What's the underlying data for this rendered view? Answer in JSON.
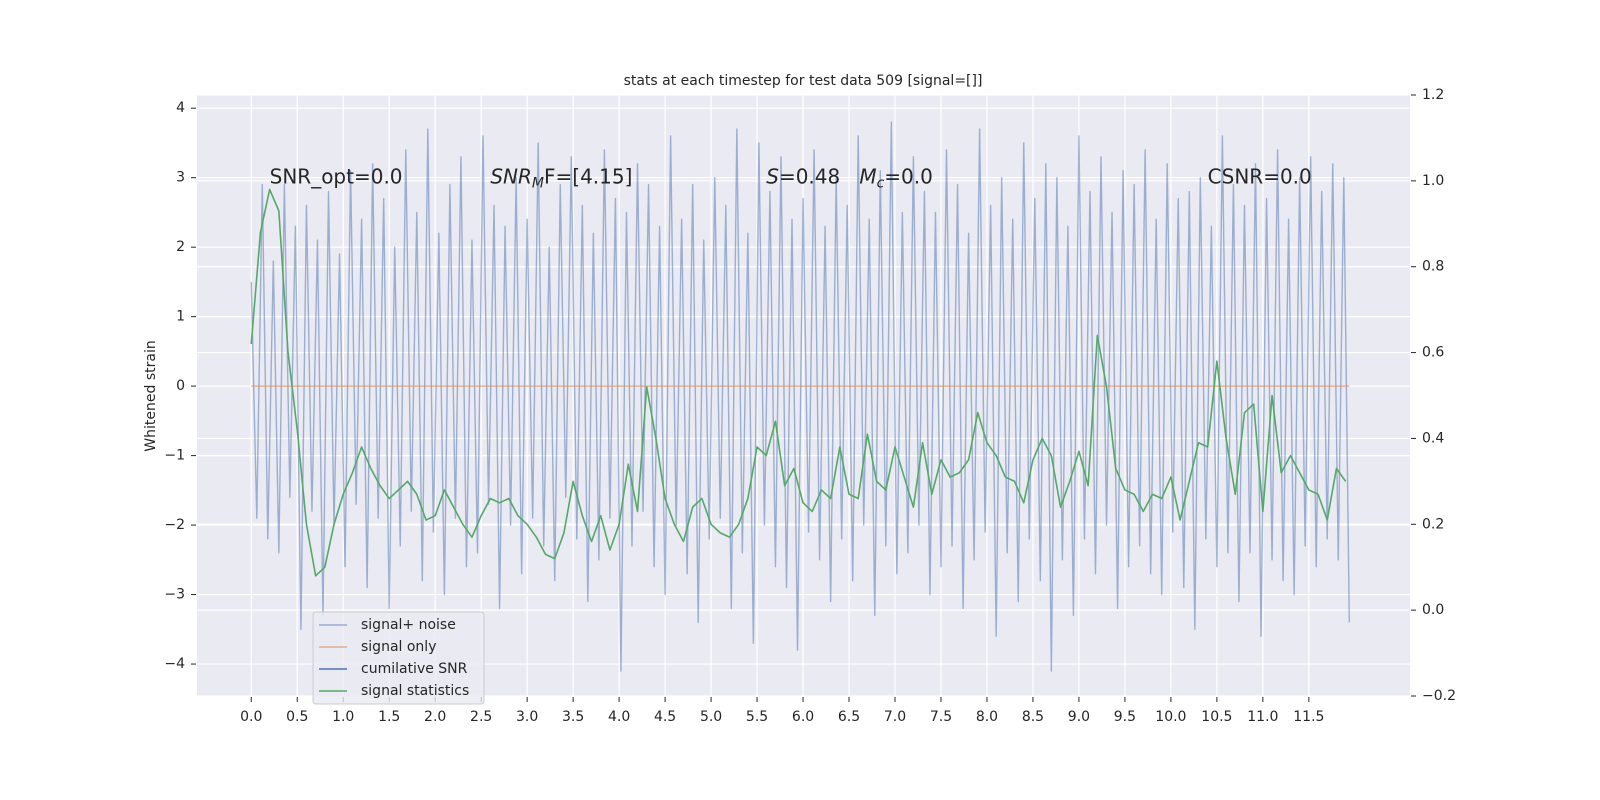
{
  "chart_data": {
    "type": "line",
    "title": "stats at each timestep for test data 509 [signal=[]]",
    "ylabel": "Whitened strain",
    "xlim": [
      -0.59,
      12.6
    ],
    "ylim": [
      -4.46,
      4.19
    ],
    "y2lim": [
      -0.2,
      1.2
    ],
    "xticks": [
      {
        "value": 0,
        "label": "0.0"
      },
      0.5,
      {
        "value": 1,
        "label": "1.0"
      },
      1.5,
      {
        "value": 2,
        "label": "2.0"
      },
      2.5,
      {
        "value": 3,
        "label": "3.0"
      },
      3.5,
      {
        "value": 4,
        "label": "4.0"
      },
      4.5,
      {
        "value": 5,
        "label": "5.0"
      },
      5.5,
      {
        "value": 6,
        "label": "6.0"
      },
      6.5,
      {
        "value": 7,
        "label": "7.0"
      },
      7.5,
      {
        "value": 8,
        "label": "8.0"
      },
      8.5,
      {
        "value": 9,
        "label": "9.0"
      },
      9.5,
      {
        "value": 10,
        "label": "10.0"
      },
      10.5,
      {
        "value": 11,
        "label": "11.0"
      },
      11.5
    ],
    "yticks": [
      {
        "value": -4,
        "label": "−4"
      },
      {
        "value": -3,
        "label": "−3"
      },
      {
        "value": -2,
        "label": "−2"
      },
      {
        "value": -1,
        "label": "−1"
      },
      0,
      1,
      2,
      3,
      4
    ],
    "y2ticks": [
      {
        "value": -0.2,
        "label": "−0.2"
      },
      {
        "value": 0,
        "label": "0.0"
      },
      0.2,
      0.4,
      0.6,
      0.8,
      {
        "value": 1,
        "label": "1.0"
      },
      1.2
    ],
    "grid": true,
    "legend": "lower left",
    "annotations": [
      {
        "x": 0.2,
        "y": 3,
        "parts": [
          {
            "text": "SNR_opt=0.0"
          }
        ]
      },
      {
        "x": 2.6,
        "y": 3,
        "parts": [
          {
            "text": "SNR",
            "style": "italic"
          },
          {
            "text": "M",
            "style": "italic-sub"
          },
          {
            "text": "F=[4.15]"
          }
        ]
      },
      {
        "x": 5.6,
        "y": 3,
        "parts": [
          {
            "text": "S",
            "style": "italic"
          },
          {
            "text": "=0.48   "
          },
          {
            "text": "M",
            "style": "italic"
          },
          {
            "text": "c",
            "style": "italic-sub"
          },
          {
            "text": "=0.0"
          }
        ]
      },
      {
        "x": 10.4,
        "y": 3,
        "parts": [
          {
            "text": "CSNR=0.0"
          }
        ]
      }
    ],
    "series": [
      {
        "name": "signal+ noise",
        "color": "#4c72b0",
        "opacity": 0.5,
        "x": [
          0,
          0.06,
          0.12,
          0.18,
          0.24,
          0.3,
          0.36,
          0.42,
          0.48,
          0.54,
          0.6,
          0.66,
          0.72,
          0.78,
          0.84,
          0.9,
          0.96,
          1.02,
          1.08,
          1.14,
          1.2,
          1.26,
          1.32,
          1.38,
          1.44,
          1.5,
          1.56,
          1.62,
          1.68,
          1.74,
          1.8,
          1.86,
          1.92,
          1.98,
          2.04,
          2.1,
          2.16,
          2.22,
          2.28,
          2.34,
          2.4,
          2.46,
          2.52,
          2.58,
          2.64,
          2.7,
          2.76,
          2.82,
          2.88,
          2.94,
          3,
          3.06,
          3.12,
          3.18,
          3.24,
          3.3,
          3.36,
          3.42,
          3.48,
          3.54,
          3.6,
          3.66,
          3.72,
          3.78,
          3.84,
          3.9,
          3.96,
          4.02,
          4.08,
          4.14,
          4.2,
          4.26,
          4.32,
          4.38,
          4.44,
          4.5,
          4.56,
          4.62,
          4.68,
          4.74,
          4.8,
          4.86,
          4.92,
          4.98,
          5.04,
          5.1,
          5.16,
          5.22,
          5.28,
          5.34,
          5.4,
          5.46,
          5.52,
          5.58,
          5.64,
          5.7,
          5.76,
          5.82,
          5.88,
          5.94,
          6,
          6.06,
          6.12,
          6.18,
          6.24,
          6.3,
          6.36,
          6.42,
          6.48,
          6.54,
          6.6,
          6.66,
          6.72,
          6.78,
          6.84,
          6.9,
          6.96,
          7.02,
          7.08,
          7.14,
          7.2,
          7.26,
          7.32,
          7.38,
          7.44,
          7.5,
          7.56,
          7.62,
          7.68,
          7.74,
          7.8,
          7.86,
          7.92,
          7.98,
          8.04,
          8.1,
          8.16,
          8.22,
          8.28,
          8.34,
          8.4,
          8.46,
          8.52,
          8.58,
          8.64,
          8.7,
          8.76,
          8.82,
          8.88,
          8.94,
          9,
          9.06,
          9.12,
          9.18,
          9.24,
          9.3,
          9.36,
          9.42,
          9.48,
          9.54,
          9.6,
          9.66,
          9.72,
          9.78,
          9.84,
          9.9,
          9.96,
          10.02,
          10.08,
          10.14,
          10.2,
          10.26,
          10.32,
          10.38,
          10.44,
          10.5,
          10.56,
          10.62,
          10.68,
          10.74,
          10.8,
          10.86,
          10.92,
          10.98,
          11.04,
          11.1,
          11.16,
          11.22,
          11.28,
          11.34,
          11.4,
          11.46,
          11.52,
          11.58,
          11.64,
          11.7,
          11.76,
          11.82,
          11.88,
          11.94
        ],
        "values": [
          1.5,
          -1.9,
          2.9,
          -2.2,
          1.8,
          -2.4,
          2.9,
          -1.6,
          2.3,
          -3.5,
          2.6,
          -1.8,
          2.1,
          -3.3,
          2.8,
          -2.0,
          1.9,
          -2.6,
          3.1,
          -1.7,
          2.4,
          -2.9,
          3.2,
          -1.9,
          2.7,
          -3.2,
          2.0,
          -2.3,
          3.4,
          -1.8,
          2.5,
          -2.8,
          3.7,
          -2.1,
          2.2,
          -3.0,
          2.9,
          -1.9,
          3.3,
          -2.6,
          2.1,
          -2.4,
          3.6,
          -1.7,
          2.6,
          -3.2,
          2.3,
          -2.0,
          3.0,
          -2.7,
          2.4,
          -1.9,
          3.5,
          -2.3,
          2.0,
          -2.8,
          2.9,
          -1.6,
          3.3,
          -2.2,
          2.6,
          -3.1,
          2.2,
          -2.5,
          3.4,
          -1.9,
          2.7,
          -4.1,
          2.5,
          -2.3,
          3.2,
          -1.8,
          2.9,
          -2.6,
          2.3,
          -3.0,
          3.6,
          -2.0,
          2.4,
          -2.7,
          2.9,
          -3.4,
          2.1,
          -2.2,
          3.0,
          -1.9,
          2.6,
          -3.2,
          3.7,
          -2.4,
          2.2,
          -3.7,
          3.5,
          -2.0,
          2.8,
          -2.6,
          3.3,
          -2.9,
          2.4,
          -3.8,
          2.7,
          -2.1,
          3.4,
          -2.5,
          2.3,
          -3.1,
          3.0,
          -2.2,
          2.6,
          -2.8,
          3.6,
          -2.0,
          2.4,
          -3.3,
          3.1,
          -2.3,
          3.8,
          -2.7,
          2.5,
          -2.4,
          3.3,
          -2.0,
          2.8,
          -3.0,
          2.5,
          -2.6,
          3.4,
          -2.3,
          2.9,
          -3.2,
          2.2,
          -2.5,
          3.7,
          -2.1,
          2.6,
          -3.6,
          3.0,
          -2.4,
          2.4,
          -3.1,
          3.5,
          -2.2,
          2.7,
          -2.8,
          3.2,
          -4.1,
          3.0,
          -2.5,
          2.3,
          -3.3,
          3.6,
          -2.2,
          2.8,
          -2.7,
          3.3,
          -2.0,
          2.5,
          -3.2,
          3.1,
          -2.6,
          2.9,
          -2.3,
          3.4,
          -2.7,
          2.4,
          -3.0,
          3.2,
          -2.1,
          2.7,
          -2.9,
          2.8,
          -3.5,
          3.0,
          -2.2,
          2.3,
          -2.6,
          3.6,
          -2.4,
          2.9,
          -3.1,
          2.6,
          -2.4,
          3.2,
          -3.6,
          2.7,
          -2.5,
          3.4,
          -2.8,
          2.4,
          -3.0,
          3.0,
          -2.3,
          3.3,
          -2.6,
          2.8,
          -2.2,
          3.2,
          -2.5,
          3.0,
          -3.4
        ]
      },
      {
        "name": "signal only",
        "color": "#dd8452",
        "opacity": 0.6,
        "x": [
          0,
          11.94
        ],
        "values": [
          0,
          0
        ]
      },
      {
        "name": "cumilative SNR",
        "color": "#4c72b0",
        "opacity": 1,
        "x": [],
        "values": []
      },
      {
        "name": "signal statistics",
        "color": "#55a868",
        "opacity": 1,
        "axis": "y2",
        "x": [
          0,
          0.1,
          0.2,
          0.3,
          0.4,
          0.5,
          0.6,
          0.7,
          0.8,
          0.9,
          1,
          1.1,
          1.2,
          1.3,
          1.4,
          1.5,
          1.6,
          1.7,
          1.8,
          1.9,
          2,
          2.1,
          2.2,
          2.3,
          2.4,
          2.5,
          2.6,
          2.7,
          2.8,
          2.9,
          3,
          3.1,
          3.2,
          3.3,
          3.4,
          3.5,
          3.6,
          3.7,
          3.8,
          3.9,
          4,
          4.1,
          4.2,
          4.3,
          4.4,
          4.5,
          4.6,
          4.7,
          4.8,
          4.9,
          5,
          5.1,
          5.2,
          5.3,
          5.4,
          5.5,
          5.6,
          5.7,
          5.8,
          5.9,
          6,
          6.1,
          6.2,
          6.3,
          6.4,
          6.5,
          6.6,
          6.7,
          6.8,
          6.9,
          7,
          7.1,
          7.2,
          7.3,
          7.4,
          7.5,
          7.6,
          7.7,
          7.8,
          7.9,
          8,
          8.1,
          8.2,
          8.3,
          8.4,
          8.5,
          8.6,
          8.7,
          8.8,
          8.9,
          9,
          9.1,
          9.2,
          9.3,
          9.4,
          9.5,
          9.6,
          9.7,
          9.8,
          9.9,
          10,
          10.1,
          10.2,
          10.3,
          10.4,
          10.5,
          10.6,
          10.7,
          10.8,
          10.9,
          11,
          11.1,
          11.2,
          11.3,
          11.4,
          11.5,
          11.6,
          11.7,
          11.8,
          11.9
        ],
        "values": [
          0.62,
          0.88,
          0.98,
          0.93,
          0.6,
          0.42,
          0.2,
          0.08,
          0.1,
          0.2,
          0.27,
          0.32,
          0.38,
          0.33,
          0.29,
          0.26,
          0.28,
          0.3,
          0.27,
          0.21,
          0.22,
          0.28,
          0.24,
          0.2,
          0.17,
          0.22,
          0.26,
          0.25,
          0.26,
          0.22,
          0.2,
          0.17,
          0.13,
          0.12,
          0.18,
          0.3,
          0.22,
          0.16,
          0.22,
          0.14,
          0.2,
          0.34,
          0.23,
          0.52,
          0.4,
          0.26,
          0.2,
          0.16,
          0.24,
          0.26,
          0.2,
          0.18,
          0.17,
          0.2,
          0.26,
          0.38,
          0.36,
          0.44,
          0.29,
          0.33,
          0.25,
          0.23,
          0.28,
          0.26,
          0.38,
          0.27,
          0.26,
          0.41,
          0.3,
          0.28,
          0.38,
          0.31,
          0.24,
          0.39,
          0.27,
          0.35,
          0.31,
          0.32,
          0.35,
          0.46,
          0.39,
          0.36,
          0.31,
          0.3,
          0.25,
          0.35,
          0.4,
          0.36,
          0.24,
          0.3,
          0.37,
          0.29,
          0.64,
          0.52,
          0.33,
          0.28,
          0.27,
          0.23,
          0.27,
          0.26,
          0.31,
          0.21,
          0.3,
          0.39,
          0.38,
          0.58,
          0.4,
          0.27,
          0.46,
          0.48,
          0.23,
          0.5,
          0.32,
          0.36,
          0.32,
          0.28,
          0.27,
          0.21,
          0.33,
          0.3
        ]
      }
    ]
  }
}
